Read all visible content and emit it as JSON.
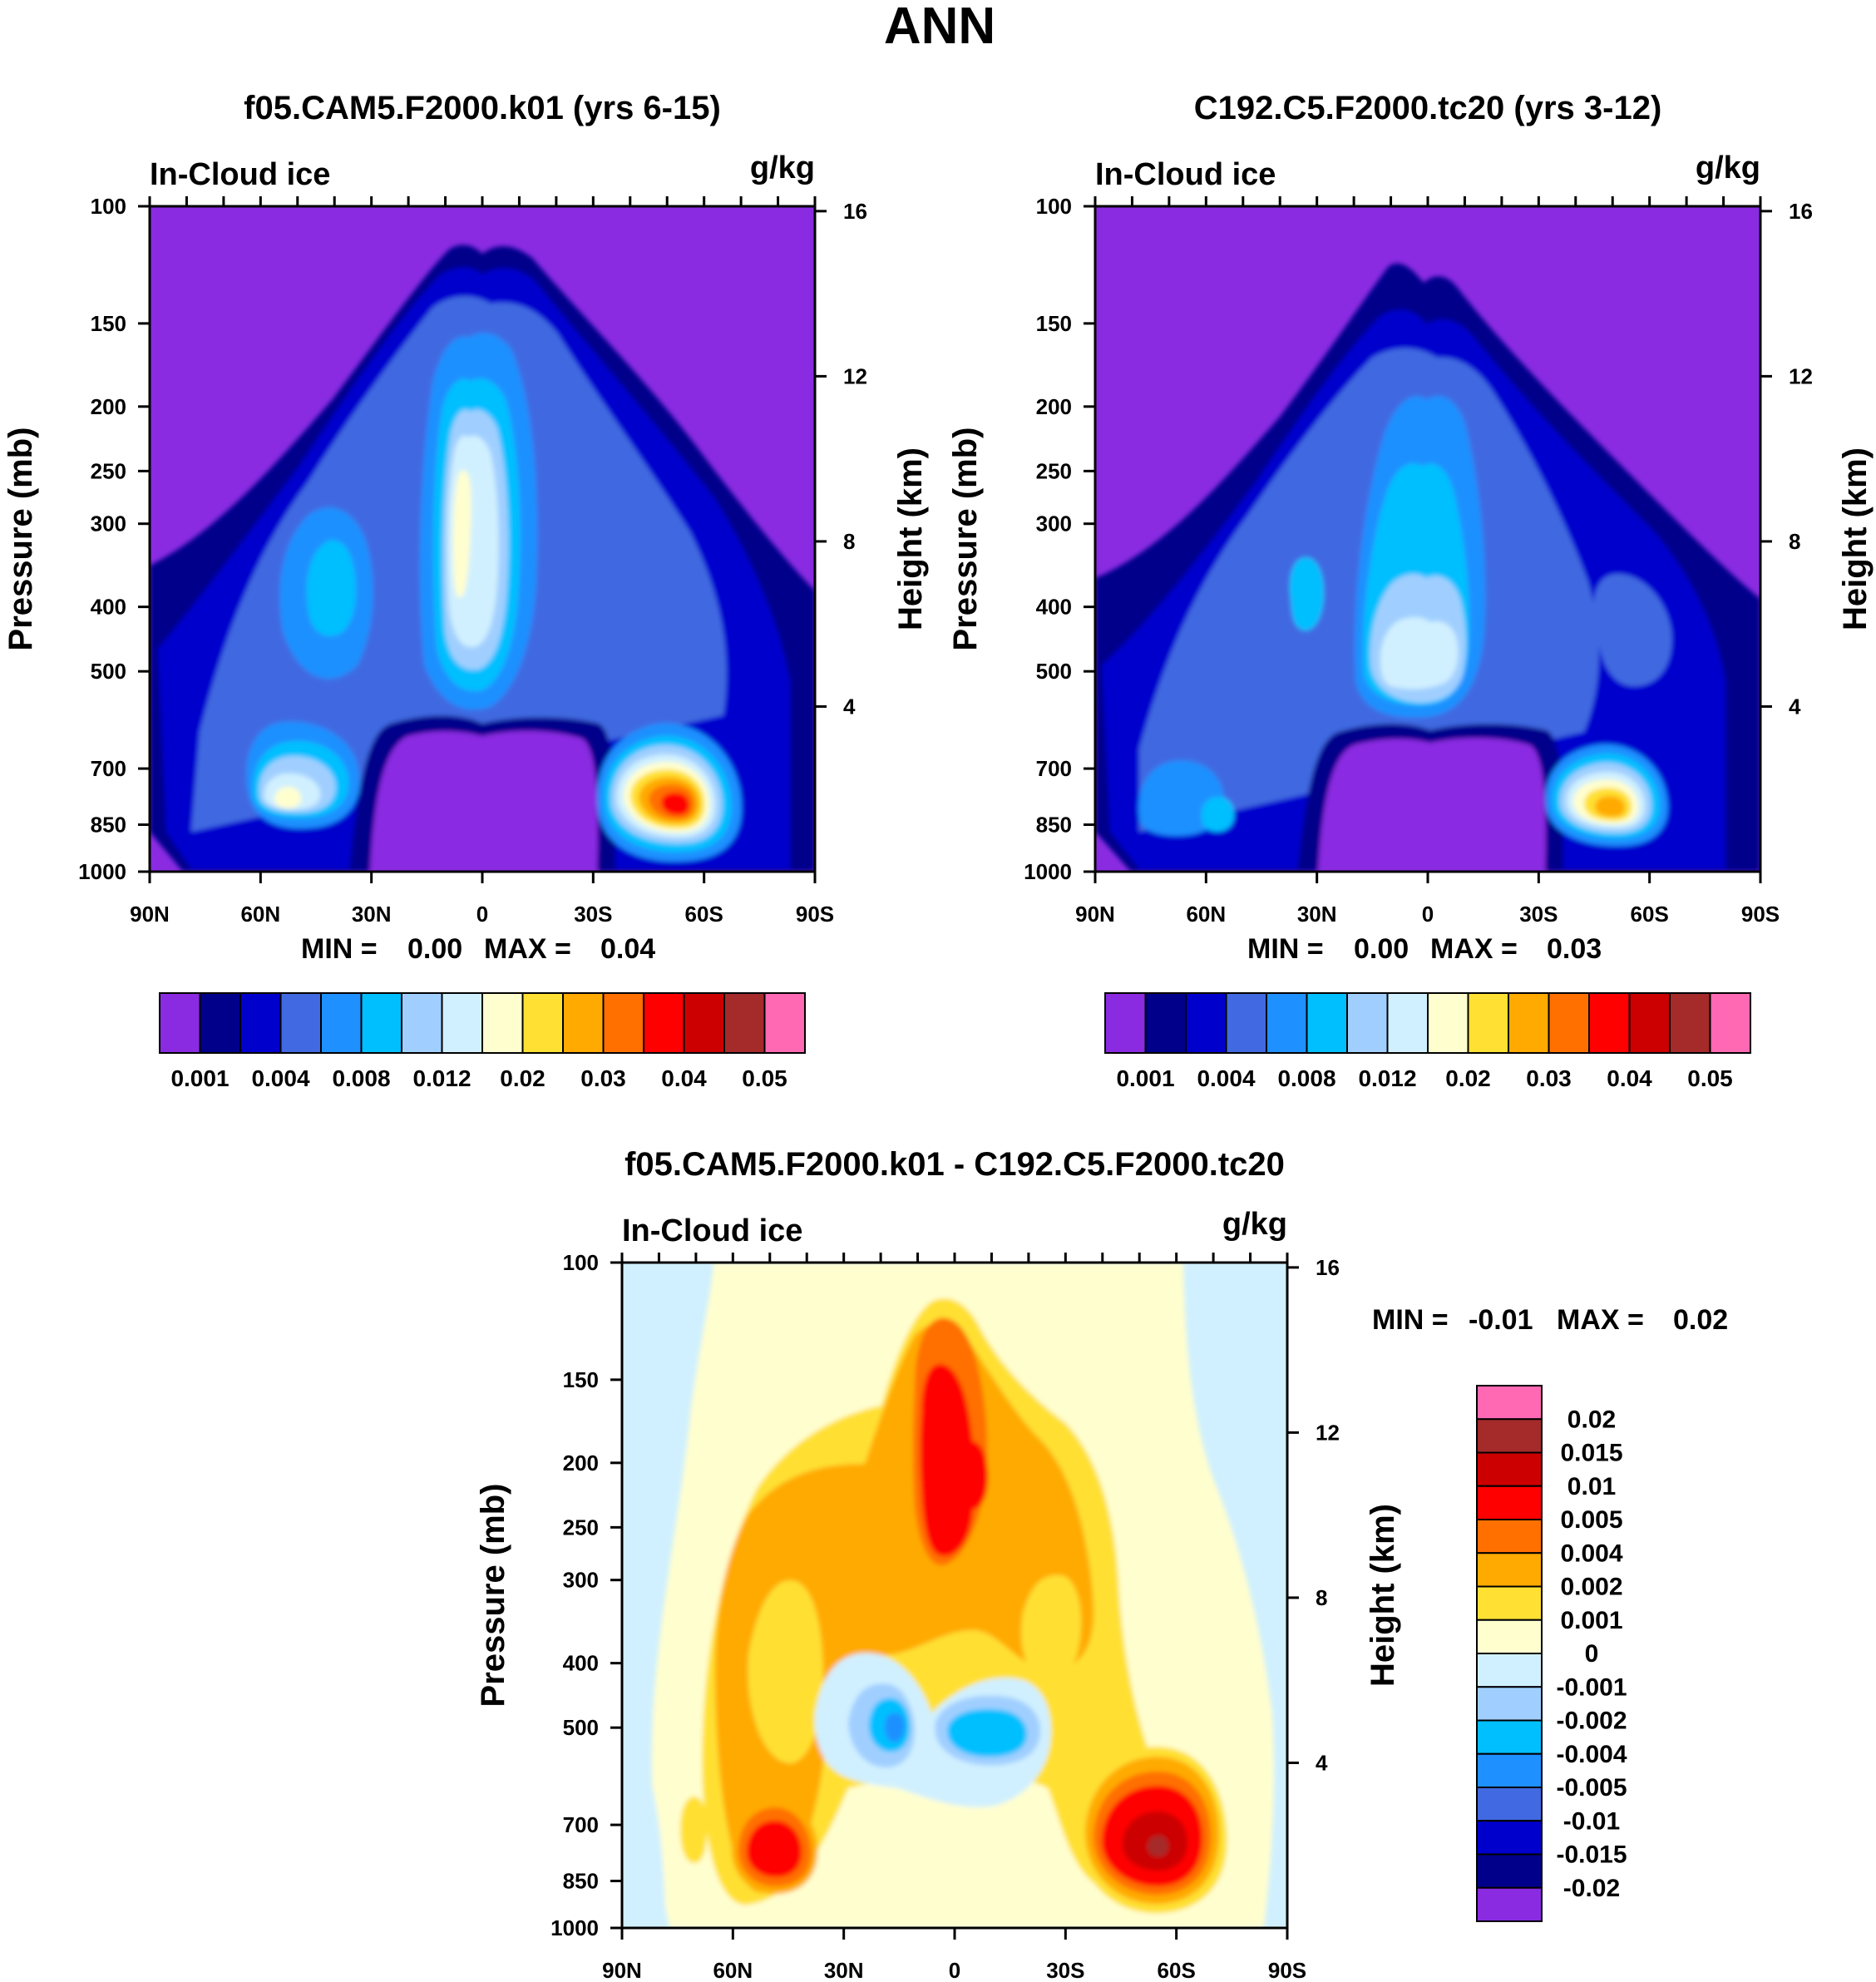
{
  "chart_data": {
    "type": "contour",
    "main_title": "ANN",
    "variable": "In-Cloud ice",
    "units": "g/kg",
    "pressure_ticks": [
      100,
      150,
      200,
      250,
      300,
      400,
      500,
      700,
      850,
      1000
    ],
    "height_ticks": [
      16,
      12,
      8,
      4
    ],
    "lat_ticks": [
      "90N",
      "60N",
      "30N",
      "0",
      "30S",
      "60S",
      "90S"
    ],
    "ylabel": "Pressure (mb)",
    "y2label": "Height (km)",
    "ylim": [
      1000,
      100
    ],
    "xlim": [
      90,
      -90
    ],
    "panels": [
      {
        "id": "top-left",
        "title": "f05.CAM5.F2000.k01 (yrs 6-15)",
        "min_label": "MIN =",
        "min_value": "0.00",
        "max_label": "MAX =",
        "max_value": "0.04",
        "levels": [
          "0.001",
          "0.004",
          "0.008",
          "0.012",
          "0.02",
          "0.03",
          "0.04",
          "0.05"
        ],
        "colors": [
          "#8a2be2",
          "#00008b",
          "#0000cd",
          "#4169e1",
          "#1e90ff",
          "#00bfff",
          "#a0cfff",
          "#d0f0ff",
          "#fffecf",
          "#ffe033",
          "#ffaa00",
          "#ff7000",
          "#ff0000",
          "#cc0000",
          "#a52a2a",
          "#ff69b4"
        ]
      },
      {
        "id": "top-right",
        "title": "C192.C5.F2000.tc20 (yrs 3-12)",
        "min_label": "MIN =",
        "min_value": "0.00",
        "max_label": "MAX =",
        "max_value": "0.03",
        "levels": [
          "0.001",
          "0.004",
          "0.008",
          "0.012",
          "0.02",
          "0.03",
          "0.04",
          "0.05"
        ],
        "colors": [
          "#8a2be2",
          "#00008b",
          "#0000cd",
          "#4169e1",
          "#1e90ff",
          "#00bfff",
          "#a0cfff",
          "#d0f0ff",
          "#fffecf",
          "#ffe033",
          "#ffaa00",
          "#ff7000",
          "#ff0000",
          "#cc0000",
          "#a52a2a",
          "#ff69b4"
        ]
      },
      {
        "id": "bottom",
        "title": "f05.CAM5.F2000.k01 - C192.C5.F2000.tc20",
        "min_label": "MIN =",
        "min_value": "-0.01",
        "max_label": "MAX =",
        "max_value": "0.02",
        "levels": [
          "0.02",
          "0.015",
          "0.01",
          "0.005",
          "0.004",
          "0.002",
          "0.001",
          "0",
          "-0.001",
          "-0.002",
          "-0.004",
          "-0.005",
          "-0.01",
          "-0.015",
          "-0.02"
        ],
        "colors": [
          "#ff69b4",
          "#a52a2a",
          "#cc0000",
          "#ff0000",
          "#ff7000",
          "#ffaa00",
          "#ffe033",
          "#fffecf",
          "#d0f0ff",
          "#a0cfff",
          "#00bfff",
          "#1e90ff",
          "#4169e1",
          "#0000cd",
          "#00008b",
          "#8a2be2"
        ]
      }
    ]
  }
}
